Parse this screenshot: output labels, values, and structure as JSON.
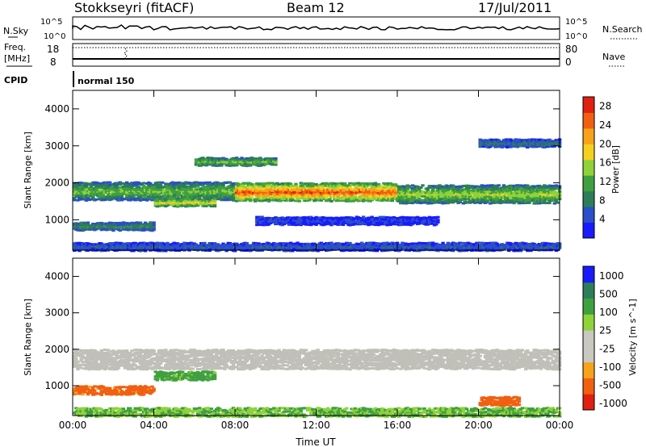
{
  "header": {
    "station": "Stokkseyri (fitACF)",
    "beam": "Beam 12",
    "date": "17/Jul/2011"
  },
  "sky_panel": {
    "left_label": "N.Sky",
    "right_label": "N.Search",
    "left_ticks": [
      "10^5",
      "10^0"
    ],
    "right_ticks": [
      "10^5",
      "10^0"
    ]
  },
  "freq_panel": {
    "left_label_1": "Freq.",
    "left_label_2": "[MHz]",
    "right_label": "Nave",
    "left_ticks": [
      "18",
      "8"
    ],
    "right_ticks": [
      "80",
      "0"
    ]
  },
  "cpid": {
    "label": "CPID",
    "mode_text": "normal 150"
  },
  "colors": {
    "power_scale": [
      "#1a1aff",
      "#2a4fc8",
      "#2e7d5a",
      "#3fa040",
      "#8fd23a",
      "#f5d020",
      "#f6a21a",
      "#f06010",
      "#e02010"
    ],
    "velocity_scale": [
      "#e02010",
      "#f06010",
      "#f6a21a",
      "#c8c8c0",
      "#c8c8c0",
      "#8fd23a",
      "#3fa040",
      "#2e7d5a",
      "#1a1aff"
    ],
    "ground_scatter": "#c0c0b8"
  },
  "chart_data": [
    {
      "type": "heatmap",
      "name": "power-panel",
      "ylabel": "Slant Range [km]",
      "xlim": [
        "00:00",
        "00:00"
      ],
      "ylim": [
        180,
        4500
      ],
      "x_ticks": [
        "00:00",
        "04:00",
        "08:00",
        "12:00",
        "16:00",
        "20:00",
        "00:00"
      ],
      "y_ticks": [
        1000,
        2000,
        3000,
        4000
      ],
      "colorbar": {
        "label": "Power [dB]",
        "ticks": [
          4,
          8,
          12,
          16,
          20,
          24,
          28
        ],
        "range": [
          0,
          30
        ]
      },
      "bands": [
        {
          "start": "00:00",
          "end": "08:00",
          "center_km": 1800,
          "value_db": 14
        },
        {
          "start": "08:00",
          "end": "16:00",
          "center_km": 1780,
          "value_db": 26
        },
        {
          "start": "16:00",
          "end": "24:00",
          "center_km": 1720,
          "value_db": 16
        },
        {
          "start": "04:00",
          "end": "07:00",
          "center_km": 1500,
          "value_db": 18
        },
        {
          "start": "00:00",
          "end": "04:00",
          "center_km": 850,
          "value_db": 10
        },
        {
          "start": "09:00",
          "end": "18:00",
          "center_km": 1000,
          "value_db": 4
        },
        {
          "start": "20:00",
          "end": "24:00",
          "center_km": 3100,
          "value_db": 8
        },
        {
          "start": "06:00",
          "end": "10:00",
          "center_km": 2600,
          "value_db": 14
        },
        {
          "start": "00:00",
          "end": "24:00",
          "center_km": 300,
          "value_db": 6
        }
      ]
    },
    {
      "type": "heatmap",
      "name": "velocity-panel",
      "xlabel": "Time UT",
      "ylabel": "Slant Range [km]",
      "xlim": [
        "00:00",
        "00:00"
      ],
      "ylim": [
        180,
        4500
      ],
      "x_ticks": [
        "00:00",
        "04:00",
        "08:00",
        "12:00",
        "16:00",
        "20:00",
        "00:00"
      ],
      "y_ticks": [
        1000,
        2000,
        3000,
        4000
      ],
      "colorbar": {
        "label": "Velocity [m s^-1]",
        "ticks": [
          1000,
          500,
          100,
          25,
          -25,
          -100,
          -500,
          -1000
        ]
      },
      "bands": [
        {
          "start": "00:00",
          "end": "24:00",
          "center_km": 1750,
          "value_ms": 0,
          "ground_scatter": true
        },
        {
          "start": "04:00",
          "end": "07:00",
          "center_km": 1300,
          "value_ms": 150
        },
        {
          "start": "00:00",
          "end": "04:00",
          "center_km": 900,
          "value_ms": -150
        },
        {
          "start": "20:00",
          "end": "22:00",
          "center_km": 600,
          "value_ms": -300
        },
        {
          "start": "00:00",
          "end": "24:00",
          "center_km": 300,
          "value_ms": 100
        }
      ]
    }
  ]
}
